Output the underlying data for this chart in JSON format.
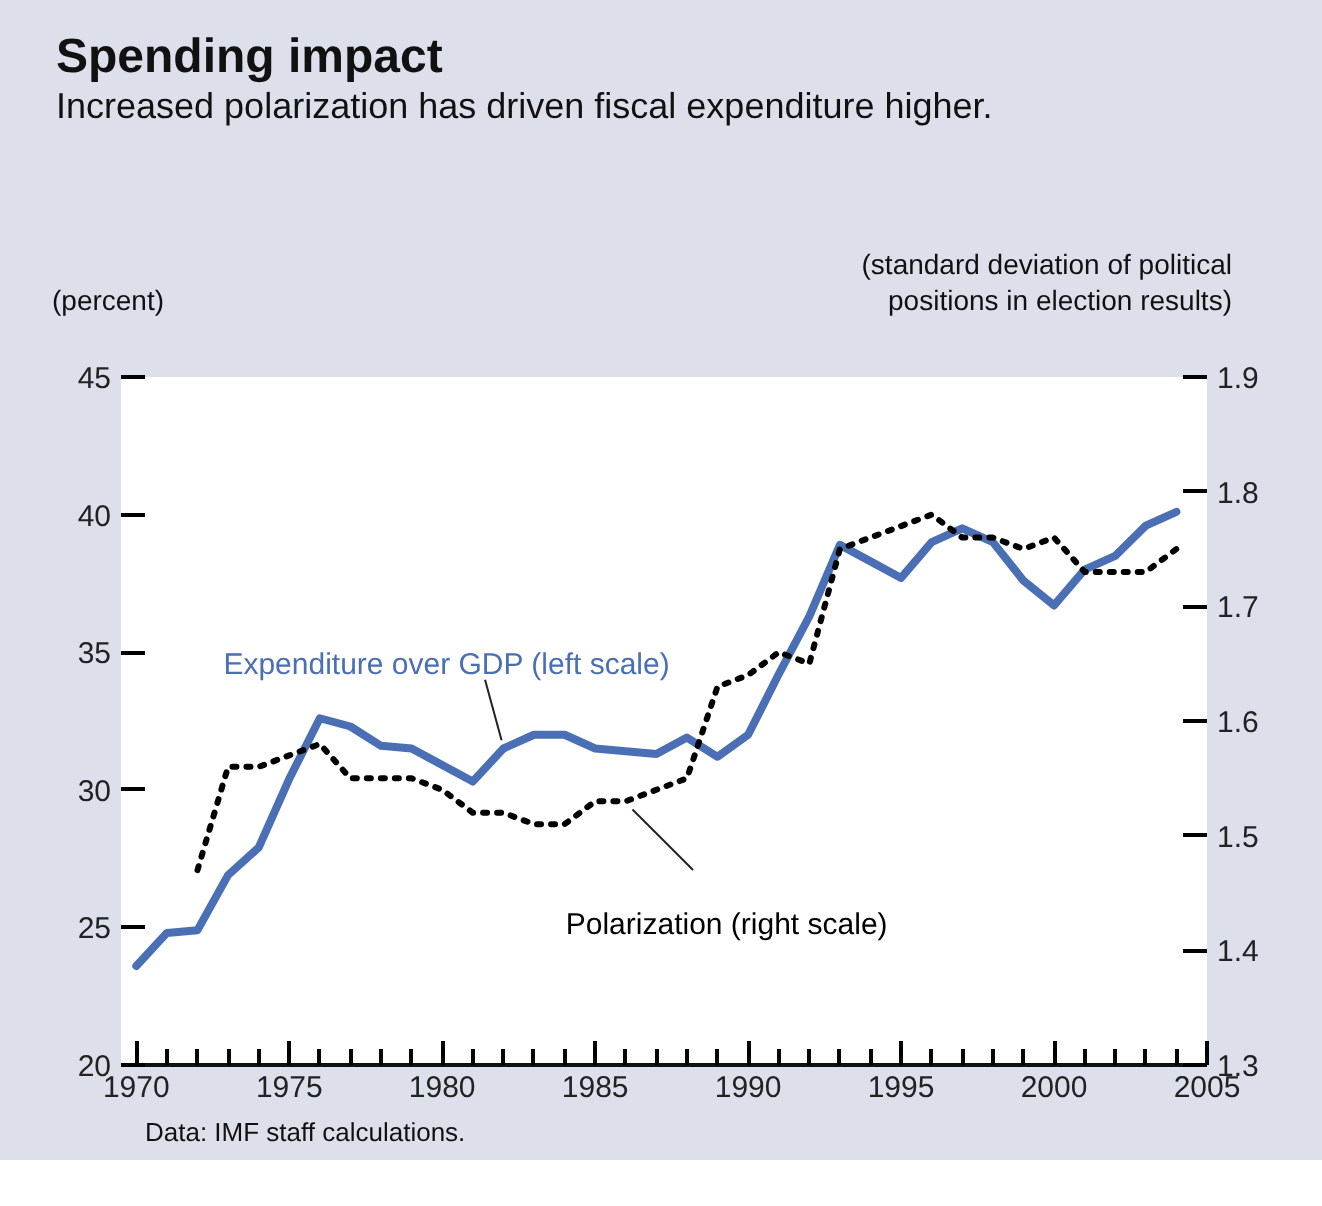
{
  "chart_data": {
    "type": "line",
    "title": "Spending impact",
    "subtitle": "Increased polarization has driven fiscal expenditure higher.",
    "ylabel": "(percent)",
    "y2label": "(standard deviation of political positions in election results)",
    "x": [
      1970,
      1971,
      1972,
      1973,
      1974,
      1975,
      1976,
      1977,
      1978,
      1979,
      1980,
      1981,
      1982,
      1983,
      1984,
      1985,
      1986,
      1987,
      1988,
      1989,
      1990,
      1991,
      1992,
      1993,
      1994,
      1995,
      1996,
      1997,
      1998,
      1999,
      2000,
      2001,
      2002,
      2003,
      2004
    ],
    "series": [
      {
        "name": "Expenditure over GDP (left scale)",
        "color": "#4a6fb5",
        "line_style": "solid",
        "values": [
          23.6,
          24.8,
          24.9,
          26.9,
          27.9,
          30.4,
          32.6,
          32.3,
          31.6,
          31.5,
          30.9,
          30.3,
          31.5,
          32.0,
          32.0,
          31.5,
          31.4,
          31.3,
          31.9,
          31.2,
          32.0,
          34.2,
          36.3,
          38.9,
          38.3,
          37.7,
          39.0,
          39.5,
          39.0,
          37.6,
          36.7,
          38.0,
          38.5,
          39.6,
          40.1
        ]
      },
      {
        "name": "Polarization (right scale)",
        "color": "#000000",
        "line_style": "dotted",
        "axis": "y2",
        "values": [
          null,
          null,
          1.47,
          1.56,
          1.56,
          1.57,
          1.58,
          1.55,
          1.55,
          1.55,
          1.54,
          1.52,
          1.52,
          1.51,
          1.51,
          1.53,
          1.53,
          1.54,
          1.55,
          1.63,
          1.64,
          1.66,
          1.65,
          1.75,
          1.76,
          1.77,
          1.78,
          1.76,
          1.76,
          1.75,
          1.76,
          1.73,
          1.73,
          1.73,
          1.75
        ]
      }
    ],
    "xlim": [
      1969.5,
      2005
    ],
    "xticks": [
      1970,
      1975,
      1980,
      1985,
      1990,
      1995,
      2000,
      2005
    ],
    "ylim": [
      20,
      45
    ],
    "yticks": [
      20,
      25,
      30,
      35,
      40,
      45
    ],
    "y2lim": [
      1.3,
      1.9
    ],
    "y2ticks": [
      1.3,
      1.4,
      1.5,
      1.6,
      1.7,
      1.8,
      1.9
    ],
    "grid": false,
    "annotations": [
      "Data: IMF staff calculations."
    ]
  }
}
